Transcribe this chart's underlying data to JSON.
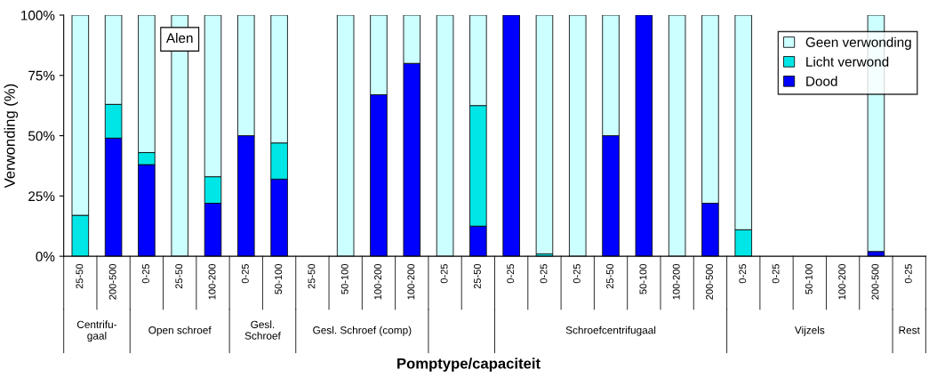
{
  "chart_data": {
    "type": "bar",
    "stacked": true,
    "title": "Alen",
    "xlabel": "Pomptype/capaciteit",
    "ylabel": "Verwonding (%)",
    "categories": [
      "25-50",
      "200-500",
      "0-25",
      "25-50",
      "100-200",
      "0-25",
      "50-100",
      "25-50",
      "50-100",
      "100-200",
      "100-200",
      "0-25",
      "25-50",
      "0-25",
      "0-25",
      "0-25",
      "25-50",
      "50-100",
      "100-200",
      "200-500",
      "0-25",
      "0-25",
      "50-100",
      "100-200",
      "200-500",
      "0-25"
    ],
    "series": [
      {
        "name": "Dood",
        "color": "#0000ff",
        "values": [
          0,
          49,
          38,
          0,
          22,
          50,
          32,
          0,
          0,
          67,
          80,
          0,
          12.5,
          100,
          0,
          0,
          50,
          100,
          0,
          22,
          0,
          0,
          0,
          0,
          2,
          0
        ]
      },
      {
        "name": "Licht verwond",
        "color": "#00e6e6",
        "values": [
          17,
          14,
          5,
          0,
          11,
          0,
          15,
          0,
          0,
          0,
          0,
          0,
          50,
          0,
          1,
          0,
          0,
          0,
          0,
          0,
          11,
          0,
          0,
          0,
          0,
          0
        ]
      },
      {
        "name": "Geen verwonding",
        "color": "#ccffff",
        "values": [
          83,
          37,
          57,
          100,
          67,
          50,
          53,
          0,
          100,
          33,
          20,
          100,
          37.5,
          0,
          99,
          100,
          50,
          0,
          100,
          78,
          89,
          0,
          0,
          0,
          98,
          0
        ]
      }
    ],
    "ylim": [
      0,
      100
    ],
    "yticks": [
      {
        "value": 0,
        "label": "0%"
      },
      {
        "value": 25,
        "label": "25%"
      },
      {
        "value": 50,
        "label": "50%"
      },
      {
        "value": 75,
        "label": "75%"
      },
      {
        "value": 100,
        "label": "100%"
      }
    ],
    "grid": false,
    "legend": "top right",
    "annotations": [
      "Centrifu-\ngaal",
      "Open schroef",
      "Gesl.\nSchroef",
      "Gesl. Schroef (comp)",
      "Schroefcentrifugaal",
      "Vijzels",
      "Rest"
    ]
  }
}
